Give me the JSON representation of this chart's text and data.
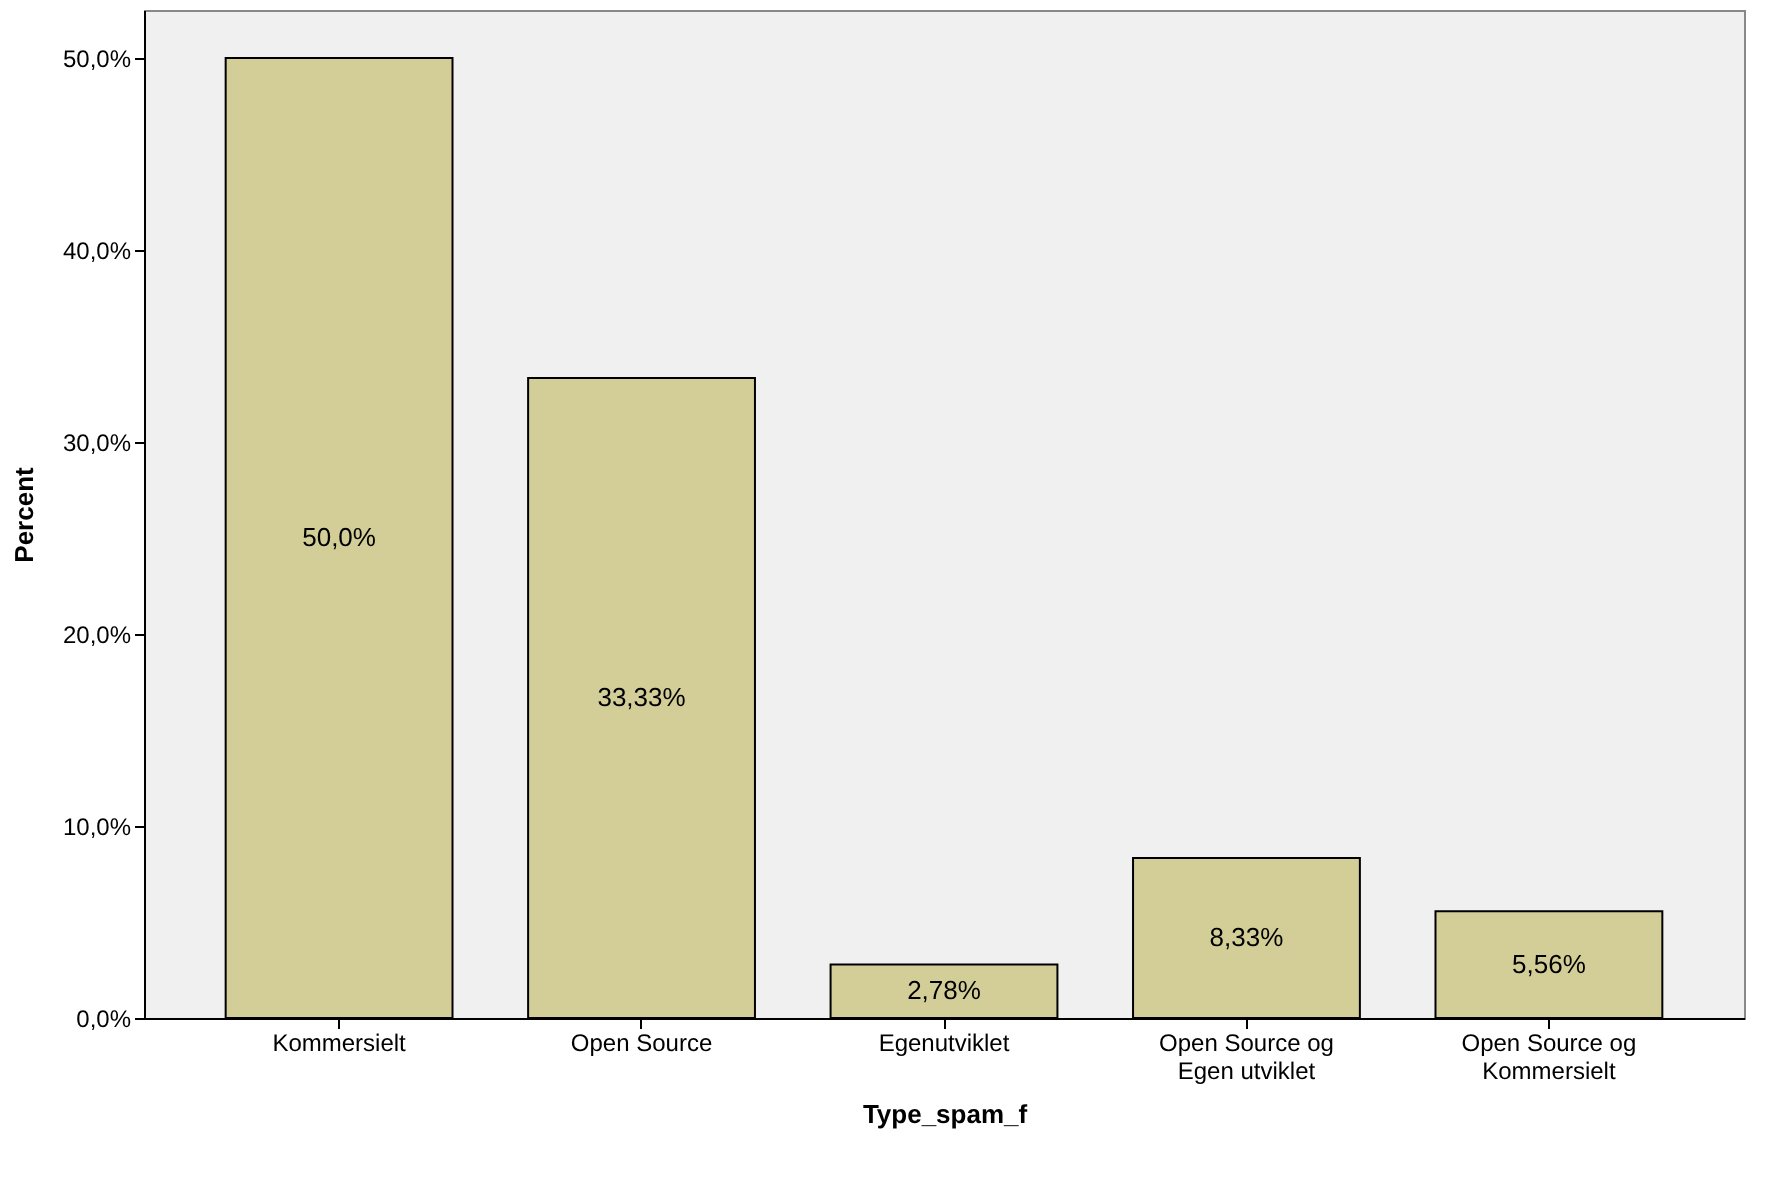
{
  "chart_data": {
    "type": "bar",
    "xlabel": "Type_spam_f",
    "ylabel": "Percent",
    "categories": [
      "Kommersielt",
      "Open Source",
      "Egenutviklet",
      "Open Source og Egen utviklet",
      "Open Source og Kommersielt"
    ],
    "values": [
      50.0,
      33.33,
      2.78,
      8.33,
      5.56
    ],
    "value_labels": [
      "50,0%",
      "33,33%",
      "2,78%",
      "8,33%",
      "5,56%"
    ],
    "color": "#d3ce97",
    "ylim": [
      0,
      52.5
    ],
    "yticks": [
      {
        "value": 0,
        "label": "0,0%"
      },
      {
        "value": 10,
        "label": "10,0%"
      },
      {
        "value": 20,
        "label": "20,0%"
      },
      {
        "value": 30,
        "label": "30,0%"
      },
      {
        "value": 40,
        "label": "40,0%"
      },
      {
        "value": 50,
        "label": "50,0%"
      }
    ],
    "grid": false
  }
}
